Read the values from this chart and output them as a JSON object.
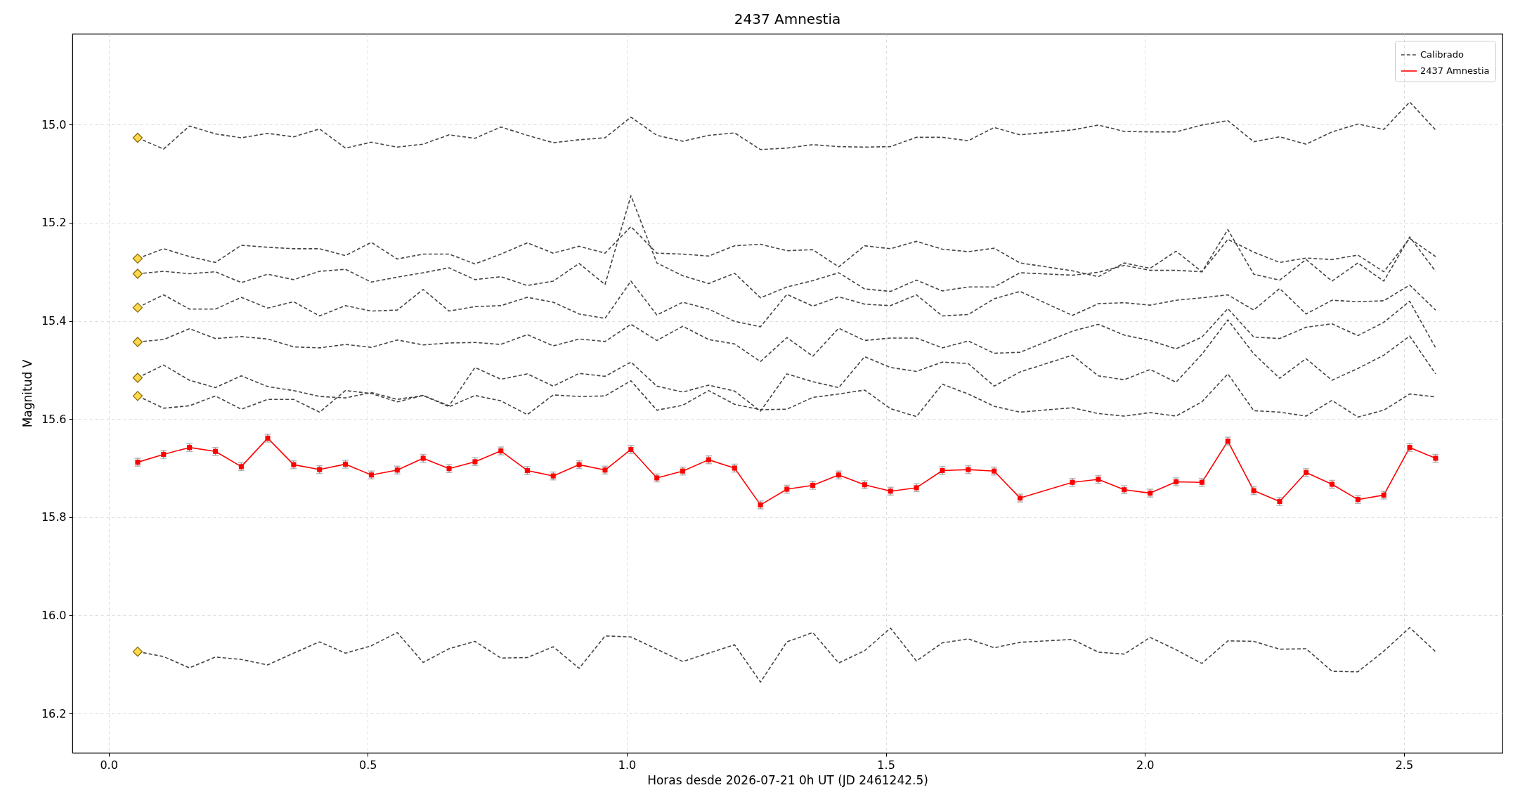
{
  "chart_data": {
    "type": "line",
    "title": "2437 Amnestia",
    "xlabel": "Horas desde 2026-07-21 0h UT (JD 2461242.5)",
    "ylabel": "Magnitud V",
    "x": [
      0.056,
      0.106,
      0.156,
      0.206,
      0.256,
      0.307,
      0.357,
      0.407,
      0.457,
      0.507,
      0.557,
      0.607,
      0.657,
      0.707,
      0.757,
      0.808,
      0.858,
      0.908,
      0.958,
      1.008,
      1.058,
      1.108,
      1.158,
      1.208,
      1.258,
      1.309,
      1.359,
      1.409,
      1.459,
      1.509,
      1.559,
      1.609,
      1.659,
      1.709,
      1.759,
      1.86,
      1.91,
      1.96,
      2.01,
      2.06,
      2.11,
      2.16,
      2.21,
      2.26,
      2.311,
      2.361,
      2.411,
      2.461,
      2.511,
      2.561
    ],
    "xlim": [
      -0.07,
      2.69
    ],
    "xticks": [
      {
        "value": 0,
        "label": "0.0"
      },
      0.5,
      {
        "value": 1,
        "label": "1.0"
      },
      1.5,
      {
        "value": 2,
        "label": "2.0"
      },
      2.5
    ],
    "ylim": [
      16.28,
      14.815
    ],
    "yticks": [
      {
        "value": 15,
        "label": "15.0"
      },
      15.2,
      15.4,
      15.6,
      15.8,
      {
        "value": 16,
        "label": "16.0"
      },
      16.2
    ],
    "grid": true,
    "legend": "top right",
    "series": [
      {
        "name": "Calibrado",
        "color": "#444444",
        "line_style": "dashed",
        "marker": "none",
        "values": [
          15.027,
          15.05,
          15.003,
          15.019,
          15.027,
          15.018,
          15.025,
          15.009,
          15.048,
          15.036,
          15.046,
          15.04,
          15.021,
          15.028,
          15.005,
          15.022,
          15.037,
          15.031,
          15.027,
          14.985,
          15.022,
          15.034,
          15.022,
          15.017,
          15.051,
          15.048,
          15.041,
          15.045,
          15.046,
          15.045,
          15.026,
          15.026,
          15.033,
          15.006,
          15.021,
          15.011,
          15.001,
          15.014,
          15.015,
          15.015,
          15.001,
          14.992,
          15.035,
          15.025,
          15.04,
          15.015,
          14.999,
          15.01,
          14.954,
          15.011
        ]
      },
      {
        "type": "line",
        "color": "#444444",
        "line_style": "dashed",
        "marker": "none",
        "values": [
          15.273,
          15.253,
          15.269,
          15.281,
          15.246,
          15.25,
          15.253,
          15.253,
          15.267,
          15.24,
          15.274,
          15.264,
          15.264,
          15.284,
          15.264,
          15.241,
          15.262,
          15.248,
          15.262,
          15.208,
          15.262,
          15.264,
          15.268,
          15.247,
          15.244,
          15.257,
          15.255,
          15.29,
          15.247,
          15.253,
          15.238,
          15.254,
          15.259,
          15.252,
          15.282,
          15.298,
          15.31,
          15.282,
          15.293,
          15.258,
          15.3,
          15.214,
          15.305,
          15.317,
          15.275,
          15.319,
          15.282,
          15.319,
          15.229,
          15.299
        ]
      },
      {
        "type": "line",
        "color": "#444444",
        "line_style": "dashed",
        "marker": "none",
        "values": [
          15.304,
          15.299,
          15.304,
          15.3,
          15.322,
          15.305,
          15.316,
          15.299,
          15.295,
          15.321,
          15.311,
          15.302,
          15.292,
          15.316,
          15.31,
          15.328,
          15.319,
          15.283,
          15.326,
          15.145,
          15.282,
          15.308,
          15.324,
          15.303,
          15.353,
          15.331,
          15.318,
          15.302,
          15.335,
          15.34,
          15.317,
          15.339,
          15.331,
          15.331,
          15.302,
          15.307,
          15.301,
          15.287,
          15.297,
          15.297,
          15.3,
          15.234,
          15.26,
          15.281,
          15.272,
          15.275,
          15.266,
          15.3,
          15.232,
          15.269
        ]
      },
      {
        "type": "line",
        "color": "#444444",
        "line_style": "dashed",
        "marker": "none",
        "values": [
          15.373,
          15.347,
          15.376,
          15.376,
          15.352,
          15.374,
          15.361,
          15.39,
          15.369,
          15.38,
          15.378,
          15.336,
          15.38,
          15.371,
          15.369,
          15.352,
          15.362,
          15.386,
          15.395,
          15.319,
          15.388,
          15.362,
          15.376,
          15.401,
          15.412,
          15.346,
          15.37,
          15.351,
          15.366,
          15.369,
          15.347,
          15.39,
          15.387,
          15.355,
          15.34,
          15.389,
          15.365,
          15.363,
          15.368,
          15.358,
          15.353,
          15.347,
          15.378,
          15.334,
          15.386,
          15.358,
          15.361,
          15.359,
          15.327,
          15.378
        ]
      },
      {
        "type": "line",
        "color": "#444444",
        "line_style": "dashed",
        "marker": "none",
        "values": [
          15.443,
          15.438,
          15.416,
          15.436,
          15.432,
          15.437,
          15.453,
          15.455,
          15.448,
          15.454,
          15.439,
          15.449,
          15.445,
          15.444,
          15.448,
          15.428,
          15.451,
          15.437,
          15.442,
          15.407,
          15.44,
          15.411,
          15.438,
          15.447,
          15.483,
          15.434,
          15.472,
          15.415,
          15.44,
          15.435,
          15.435,
          15.455,
          15.441,
          15.466,
          15.464,
          15.421,
          15.407,
          15.429,
          15.44,
          15.457,
          15.433,
          15.375,
          15.433,
          15.436,
          15.413,
          15.406,
          15.43,
          15.403,
          15.36,
          15.455
        ]
      },
      {
        "type": "line",
        "color": "#444444",
        "line_style": "dashed",
        "marker": "none",
        "values": [
          15.516,
          15.49,
          15.521,
          15.536,
          15.512,
          15.534,
          15.542,
          15.554,
          15.557,
          15.546,
          15.56,
          15.552,
          15.573,
          15.495,
          15.519,
          15.508,
          15.533,
          15.507,
          15.513,
          15.484,
          15.533,
          15.545,
          15.531,
          15.543,
          15.584,
          15.508,
          15.524,
          15.536,
          15.473,
          15.495,
          15.503,
          15.484,
          15.487,
          15.533,
          15.504,
          15.47,
          15.512,
          15.52,
          15.499,
          15.525,
          15.468,
          15.398,
          15.467,
          15.517,
          15.477,
          15.521,
          15.497,
          15.47,
          15.431,
          15.508
        ]
      },
      {
        "type": "line",
        "color": "#444444",
        "line_style": "dashed",
        "marker": "none",
        "values": [
          15.553,
          15.578,
          15.573,
          15.553,
          15.58,
          15.56,
          15.56,
          15.586,
          15.542,
          15.548,
          15.565,
          15.552,
          15.575,
          15.552,
          15.563,
          15.591,
          15.551,
          15.554,
          15.553,
          15.522,
          15.582,
          15.572,
          15.542,
          15.57,
          15.581,
          15.58,
          15.556,
          15.549,
          15.541,
          15.579,
          15.595,
          15.529,
          15.549,
          15.574,
          15.586,
          15.577,
          15.589,
          15.594,
          15.587,
          15.594,
          15.565,
          15.508,
          15.583,
          15.586,
          15.594,
          15.562,
          15.596,
          15.582,
          15.549,
          15.555
        ]
      },
      {
        "type": "line",
        "color": "#444444",
        "line_style": "dashed",
        "marker": "none",
        "values": [
          16.074,
          16.084,
          16.107,
          16.085,
          16.09,
          16.101,
          16.077,
          16.054,
          16.077,
          16.062,
          16.035,
          16.096,
          16.068,
          16.053,
          16.087,
          16.086,
          16.064,
          16.108,
          16.042,
          16.044,
          16.069,
          16.094,
          16.077,
          16.06,
          16.136,
          16.054,
          16.035,
          16.097,
          16.072,
          16.026,
          16.093,
          16.056,
          16.048,
          16.066,
          16.055,
          16.049,
          16.075,
          16.079,
          16.045,
          16.07,
          16.098,
          16.052,
          16.053,
          16.069,
          16.068,
          16.114,
          16.115,
          16.073,
          16.025,
          16.074
        ]
      },
      {
        "name": "2437 Amnestia",
        "color": "#ff0000",
        "line_style": "solid",
        "marker": "square",
        "values": [
          15.688,
          15.672,
          15.658,
          15.666,
          15.697,
          15.639,
          15.693,
          15.703,
          15.692,
          15.714,
          15.704,
          15.68,
          15.701,
          15.687,
          15.665,
          15.705,
          15.716,
          15.693,
          15.704,
          15.662,
          15.72,
          15.706,
          15.683,
          15.7,
          15.775,
          15.743,
          15.735,
          15.714,
          15.734,
          15.747,
          15.74,
          15.705,
          15.703,
          15.706,
          15.761,
          15.729,
          15.723,
          15.744,
          15.751,
          15.728,
          15.729,
          15.645,
          15.746,
          15.768,
          15.709,
          15.733,
          15.764,
          15.755,
          15.658,
          15.68
        ],
        "errors": [
          0.008,
          0.008,
          0.008,
          0.008,
          0.008,
          0.008,
          0.008,
          0.008,
          0.008,
          0.008,
          0.008,
          0.008,
          0.008,
          0.008,
          0.008,
          0.008,
          0.008,
          0.008,
          0.008,
          0.008,
          0.008,
          0.008,
          0.008,
          0.008,
          0.008,
          0.008,
          0.008,
          0.008,
          0.008,
          0.008,
          0.008,
          0.008,
          0.008,
          0.008,
          0.008,
          0.008,
          0.008,
          0.008,
          0.008,
          0.008,
          0.008,
          0.008,
          0.008,
          0.008,
          0.008,
          0.008,
          0.008,
          0.008,
          0.008,
          0.008
        ]
      },
      {
        "type": "scatter",
        "color": "#ffd84d",
        "marker": "diamond",
        "values": [
          15.027,
          null,
          null,
          null,
          null,
          null,
          null,
          null,
          null,
          null,
          null,
          null,
          null,
          null,
          null,
          null,
          null,
          null,
          null,
          null,
          null,
          null,
          null,
          null,
          null,
          null,
          null,
          null,
          null,
          null,
          null,
          null,
          null,
          null,
          null,
          null,
          null,
          null,
          null,
          null,
          null,
          null,
          null,
          null,
          null,
          null,
          null,
          null,
          null,
          null
        ]
      },
      {
        "type": "scatter",
        "color": "#ffd84d",
        "marker": "diamond",
        "values": [
          15.273,
          null,
          null,
          null,
          null,
          null,
          null,
          null,
          null,
          null,
          null,
          null,
          null,
          null,
          null,
          null,
          null,
          null,
          null,
          null,
          null,
          null,
          null,
          null,
          null,
          null,
          null,
          null,
          null,
          null,
          null,
          null,
          null,
          null,
          null,
          null,
          null,
          null,
          null,
          null,
          null,
          null,
          null,
          null,
          null,
          null,
          null,
          null,
          null,
          null
        ]
      },
      {
        "type": "scatter",
        "color": "#ffd84d",
        "marker": "diamond",
        "values": [
          15.304,
          null,
          null,
          null,
          null,
          null,
          null,
          null,
          null,
          null,
          null,
          null,
          null,
          null,
          null,
          null,
          null,
          null,
          null,
          null,
          null,
          null,
          null,
          null,
          null,
          null,
          null,
          null,
          null,
          null,
          null,
          null,
          null,
          null,
          null,
          null,
          null,
          null,
          null,
          null,
          null,
          null,
          null,
          null,
          null,
          null,
          null,
          null,
          null,
          null
        ]
      },
      {
        "type": "scatter",
        "color": "#ffd84d",
        "marker": "diamond",
        "values": [
          15.373,
          null,
          null,
          null,
          null,
          null,
          null,
          null,
          null,
          null,
          null,
          null,
          null,
          null,
          null,
          null,
          null,
          null,
          null,
          null,
          null,
          null,
          null,
          null,
          null,
          null,
          null,
          null,
          null,
          null,
          null,
          null,
          null,
          null,
          null,
          null,
          null,
          null,
          null,
          null,
          null,
          null,
          null,
          null,
          null,
          null,
          null,
          null,
          null,
          null
        ]
      },
      {
        "type": "scatter",
        "color": "#ffd84d",
        "marker": "diamond",
        "values": [
          15.443,
          null,
          null,
          null,
          null,
          null,
          null,
          null,
          null,
          null,
          null,
          null,
          null,
          null,
          null,
          null,
          null,
          null,
          null,
          null,
          null,
          null,
          null,
          null,
          null,
          null,
          null,
          null,
          null,
          null,
          null,
          null,
          null,
          null,
          null,
          null,
          null,
          null,
          null,
          null,
          null,
          null,
          null,
          null,
          null,
          null,
          null,
          null,
          null,
          null
        ]
      },
      {
        "type": "scatter",
        "color": "#ffd84d",
        "marker": "diamond",
        "values": [
          15.516,
          null,
          null,
          null,
          null,
          null,
          null,
          null,
          null,
          null,
          null,
          null,
          null,
          null,
          null,
          null,
          null,
          null,
          null,
          null,
          null,
          null,
          null,
          null,
          null,
          null,
          null,
          null,
          null,
          null,
          null,
          null,
          null,
          null,
          null,
          null,
          null,
          null,
          null,
          null,
          null,
          null,
          null,
          null,
          null,
          null,
          null,
          null,
          null,
          null
        ]
      },
      {
        "type": "scatter",
        "color": "#ffd84d",
        "marker": "diamond",
        "values": [
          15.553,
          null,
          null,
          null,
          null,
          null,
          null,
          null,
          null,
          null,
          null,
          null,
          null,
          null,
          null,
          null,
          null,
          null,
          null,
          null,
          null,
          null,
          null,
          null,
          null,
          null,
          null,
          null,
          null,
          null,
          null,
          null,
          null,
          null,
          null,
          null,
          null,
          null,
          null,
          null,
          null,
          null,
          null,
          null,
          null,
          null,
          null,
          null,
          null,
          null
        ]
      },
      {
        "type": "scatter",
        "color": "#ffd84d",
        "marker": "diamond",
        "values": [
          16.074,
          null,
          null,
          null,
          null,
          null,
          null,
          null,
          null,
          null,
          null,
          null,
          null,
          null,
          null,
          null,
          null,
          null,
          null,
          null,
          null,
          null,
          null,
          null,
          null,
          null,
          null,
          null,
          null,
          null,
          null,
          null,
          null,
          null,
          null,
          null,
          null,
          null,
          null,
          null,
          null,
          null,
          null,
          null,
          null,
          null,
          null,
          null,
          null,
          null
        ]
      }
    ]
  }
}
